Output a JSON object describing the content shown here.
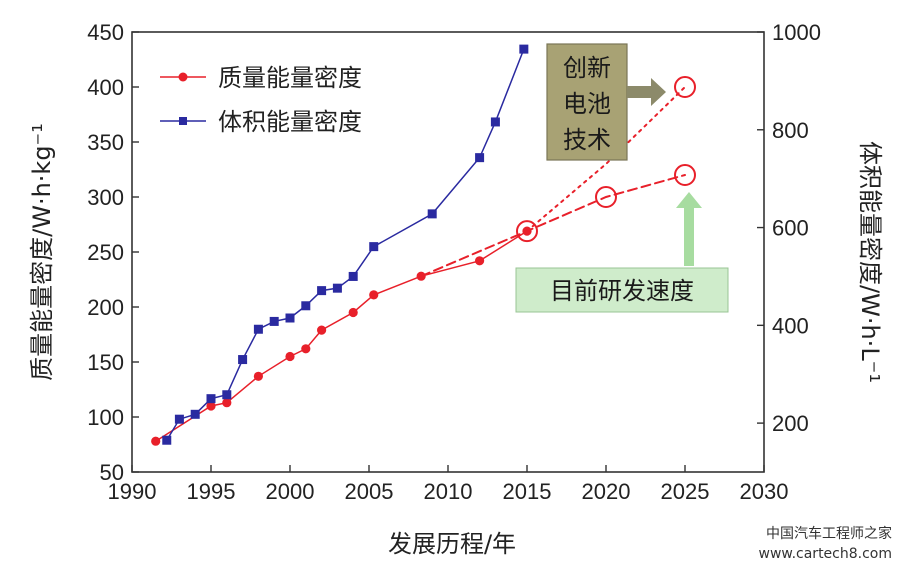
{
  "chart_data": {
    "type": "line",
    "xlabel": "发展历程/年",
    "ylabel_left": "质量能量密度/W·h·kg⁻¹",
    "ylabel_right": "体积能量密度/W·h·L⁻¹",
    "xlim": [
      1990,
      2030
    ],
    "ylim_left": [
      50,
      450
    ],
    "ylim_right": [
      100,
      1000
    ],
    "x_ticks": [
      "1990",
      "1995",
      "2000",
      "2005",
      "2010",
      "2015",
      "2020",
      "2025",
      "2030"
    ],
    "y_ticks_left": [
      "50",
      "100",
      "150",
      "200",
      "250",
      "300",
      "350",
      "400",
      "450"
    ],
    "y_ticks_right": [
      "200",
      "400",
      "600",
      "800",
      "1000"
    ],
    "legend_position": "top-left",
    "series": [
      {
        "name": "质量能量密度",
        "axis": "left",
        "color": "#e8202a",
        "marker": "circle",
        "x": [
          1991.5,
          1995,
          1996,
          1998,
          2000,
          2001,
          2002,
          2004,
          2005.3,
          2008.3,
          2012,
          2015
        ],
        "y": [
          78,
          110,
          113,
          137,
          155,
          162,
          179,
          195,
          211,
          228,
          242,
          269
        ]
      },
      {
        "name": "体积能量密度",
        "axis": "right",
        "color": "#2a2aa0",
        "marker": "square",
        "x": [
          1992.2,
          1993,
          1994,
          1995,
          1996,
          1997,
          1998,
          1999,
          2000,
          2001,
          2002,
          2003,
          2004,
          2005.3,
          2009,
          2012,
          2013,
          2014.8
        ],
        "y": [
          165,
          208,
          218,
          250,
          258,
          330,
          392,
          408,
          415,
          440,
          471,
          476,
          500,
          561,
          628,
          743,
          816,
          965
        ]
      }
    ],
    "projections": [
      {
        "label": "创新电池技术",
        "style": "dotted",
        "color": "#e8202a",
        "x": [
          2015,
          2020,
          2025
        ],
        "y": [
          269,
          330,
          400
        ]
      },
      {
        "label": "目前研发速度",
        "style": "dashed",
        "color": "#e8202a",
        "x": [
          2008.3,
          2015,
          2020,
          2025
        ],
        "y": [
          228,
          269,
          300,
          320
        ]
      }
    ],
    "projection_points": [
      {
        "x": 2015,
        "y": 269
      },
      {
        "x": 2020,
        "y": 300
      },
      {
        "x": 2025,
        "y": 320
      },
      {
        "x": 2025,
        "y": 400
      }
    ],
    "annotations": {
      "innovative_label": "创新电池技术",
      "innovative_lines": [
        "创新",
        "电池",
        "技术"
      ],
      "current_label": "目前研发速度"
    },
    "colors": {
      "innovative_box": "#a8a274",
      "current_box": "#cfeccb",
      "innovative_arrow": "#8c8a6a",
      "current_arrow": "#a7dca0"
    }
  },
  "watermark": {
    "line1": "中国汽车工程师之家",
    "line2": "www.cartech8.com"
  }
}
